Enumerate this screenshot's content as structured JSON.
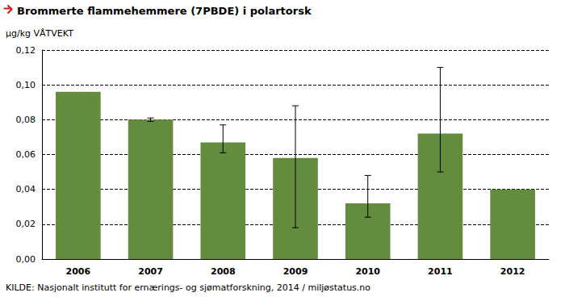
{
  "chart_data": {
    "type": "bar",
    "title": "Brommerte flammehemmere (7PBDE) i polartorsk",
    "y_label": "µg/kg VÅTVEKT",
    "source": "KILDE: Nasjonalt institutt for ernærings- og sjømatforskning, 2014 / miljøstatus.no",
    "categories": [
      "2006",
      "2007",
      "2008",
      "2009",
      "2010",
      "2011",
      "2012"
    ],
    "values": [
      0.096,
      0.08,
      0.067,
      0.058,
      0.032,
      0.072,
      0.04
    ],
    "error_low": [
      null,
      0.079,
      0.061,
      0.018,
      0.024,
      0.05,
      null
    ],
    "error_high": [
      null,
      0.081,
      0.077,
      0.088,
      0.048,
      0.11,
      null
    ],
    "color": "#638c3c",
    "ylim": [
      0,
      0.12
    ],
    "yticks": [
      {
        "value": 0,
        "label": "0,00"
      },
      {
        "value": 0.02,
        "label": "0,02"
      },
      {
        "value": 0.04,
        "label": "0,04"
      },
      {
        "value": 0.06,
        "label": "0,06"
      },
      {
        "value": 0.08,
        "label": "0,08"
      },
      {
        "value": 0.1,
        "label": "0,10"
      },
      {
        "value": 0.12,
        "label": "0,12"
      }
    ],
    "grid": true
  }
}
